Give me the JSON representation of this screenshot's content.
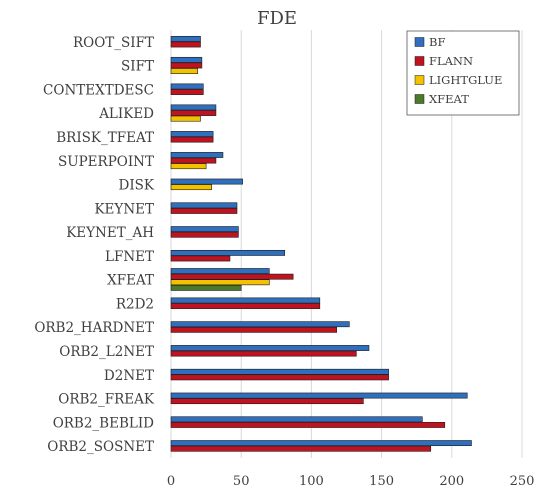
{
  "chart_data": {
    "type": "bar",
    "orientation": "horizontal",
    "title": "FDE",
    "xlabel": "",
    "ylabel": "",
    "xlim": [
      0,
      250
    ],
    "x_ticks": [
      "0",
      "50",
      "100",
      "150",
      "200",
      "250"
    ],
    "grid": "vertical",
    "legend_position": "top-right",
    "categories": [
      "ROOT_SIFT",
      "SIFT",
      "CONTEXTDESC",
      "ALIKED",
      "BRISK_TFEAT",
      "SUPERPOINT",
      "DISK",
      "KEYNET",
      "KEYNET_AH",
      "LFNET",
      "XFEAT",
      "R2D2",
      "ORB2_HARDNET",
      "ORB2_L2NET",
      "D2NET",
      "ORB2_FREAK",
      "ORB2_BEBLID",
      "ORB2_SOSNET"
    ],
    "series": [
      {
        "name": "BF",
        "color": "#2f6fbe",
        "values": [
          21,
          22,
          23,
          32,
          30,
          37,
          51,
          47,
          48,
          81,
          70,
          106,
          127,
          141,
          155,
          211,
          179,
          214
        ]
      },
      {
        "name": "FLANN",
        "color": "#c0121f",
        "values": [
          21,
          22,
          23,
          32,
          30,
          32,
          null,
          47,
          48,
          42,
          87,
          106,
          118,
          132,
          155,
          137,
          195,
          185
        ]
      },
      {
        "name": "LIGHTGLUE",
        "color": "#f2c200",
        "values": [
          null,
          19,
          null,
          21,
          null,
          25,
          29,
          null,
          null,
          null,
          70,
          null,
          null,
          null,
          null,
          null,
          null,
          null
        ]
      },
      {
        "name": "XFEAT",
        "color": "#4a7a2b",
        "values": [
          null,
          null,
          null,
          null,
          null,
          null,
          null,
          null,
          null,
          null,
          50,
          null,
          null,
          null,
          null,
          null,
          null,
          null
        ]
      }
    ]
  }
}
